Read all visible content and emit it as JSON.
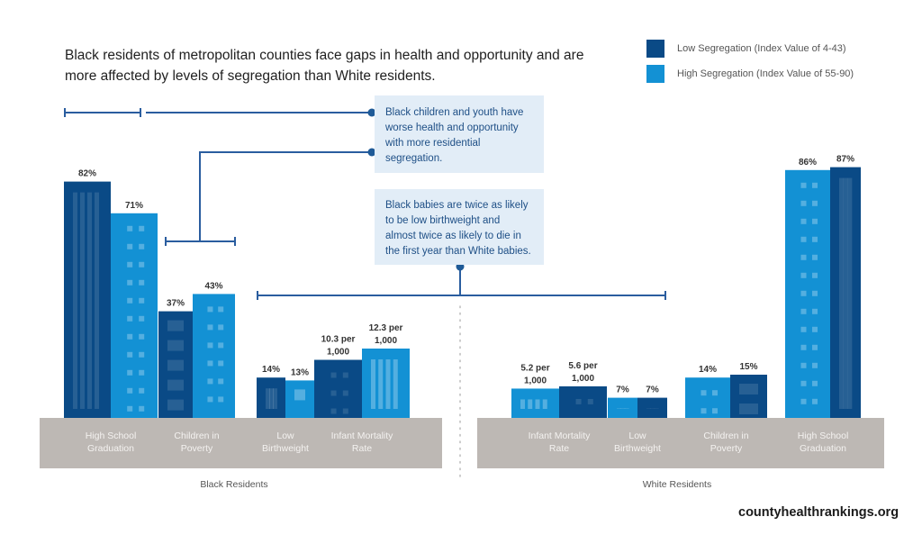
{
  "title": "Black residents of metropolitan counties face gaps in health and opportunity and are more affected by levels of segregation than White residents.",
  "legend": [
    {
      "label": "Low Segregation (Index Value of 4-43)",
      "color": "#0a4a86"
    },
    {
      "label": "High Segregation (Index Value of 55-90)",
      "color": "#1391d4"
    }
  ],
  "callouts": {
    "children": "Black children and youth have worse health and opportunity with more residential segregation.",
    "babies": "Black babies are twice as likely to be low birthweight and almost twice as likely to die in the first year than White babies."
  },
  "source": "countyhealthrankings.org",
  "chart_data": {
    "type": "bar",
    "title": "Black residents of metropolitan counties face gaps in health and opportunity and are more affected by levels of segregation than White residents.",
    "legend_placement": "top-right",
    "grid": false,
    "panels": [
      {
        "name": "Black Residents",
        "categories": [
          {
            "label": [
              "High School",
              "Graduation"
            ],
            "unit": "%",
            "low": 82,
            "high": 71,
            "low_label": "82%",
            "high_label": "71%"
          },
          {
            "label": [
              "Children in",
              "Poverty"
            ],
            "unit": "%",
            "low": 37,
            "high": 43,
            "low_label": "37%",
            "high_label": "43%"
          },
          {
            "label": [
              "Low",
              "Birthweight"
            ],
            "unit": "%",
            "low": 14,
            "high": 13,
            "low_label": "14%",
            "high_label": "13%"
          },
          {
            "label": [
              "Infant Mortality",
              "Rate"
            ],
            "unit": "per 1,000",
            "low": 10.3,
            "high": 12.3,
            "low_label": [
              "10.3 per",
              "1,000"
            ],
            "high_label": [
              "12.3 per",
              "1,000"
            ]
          }
        ]
      },
      {
        "name": "White Residents",
        "categories": [
          {
            "label": [
              "Infant Mortality",
              "Rate"
            ],
            "unit": "per 1,000",
            "low": 5.6,
            "high": 5.2,
            "low_label": [
              "5.6 per",
              "1,000"
            ],
            "high_label": [
              "5.2 per",
              "1,000"
            ]
          },
          {
            "label": [
              "Low",
              "Birthweight"
            ],
            "unit": "%",
            "low": 7,
            "high": 7,
            "low_label": "7%",
            "high_label": "7%"
          },
          {
            "label": [
              "Children in",
              "Poverty"
            ],
            "unit": "%",
            "low": 15,
            "high": 14,
            "low_label": "15%",
            "high_label": "14%"
          },
          {
            "label": [
              "High School",
              "Graduation"
            ],
            "unit": "%",
            "low": 87,
            "high": 86,
            "low_label": "87%",
            "high_label": "86%"
          }
        ]
      }
    ]
  }
}
